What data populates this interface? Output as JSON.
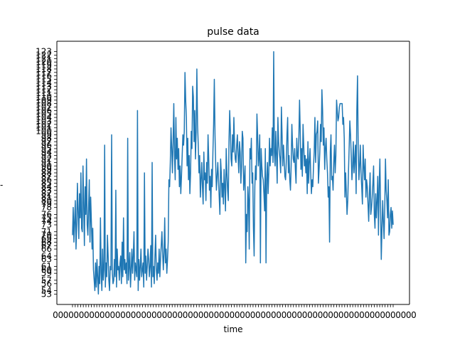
{
  "chart_data": {
    "type": "line",
    "title": "pulse data",
    "xlabel": "time",
    "ylabel": "-",
    "y_ticks": [
      53,
      54,
      56,
      57,
      59,
      60,
      61,
      63,
      64,
      66,
      67,
      68,
      69,
      70,
      71,
      73,
      74,
      75,
      76,
      78,
      79,
      80,
      81,
      82,
      83,
      84,
      85,
      86,
      87,
      88,
      89,
      90,
      91,
      92,
      93,
      94,
      95,
      96,
      97,
      98,
      99,
      100,
      101,
      102,
      103,
      104,
      105,
      106,
      107,
      108,
      109,
      110,
      111,
      112,
      113,
      114,
      115,
      116,
      117,
      118,
      119,
      120,
      121,
      122,
      123
    ],
    "ylim": [
      50,
      126
    ],
    "x_tick_label": "0",
    "grid": false,
    "series": [
      {
        "color": "#1f77b4",
        "values": [
          70,
          78,
          68,
          74,
          80,
          66,
          73,
          85,
          77,
          69,
          82,
          75,
          88,
          72,
          71,
          90,
          79,
          67,
          84,
          76,
          92,
          73,
          70,
          78,
          86,
          68,
          81,
          74,
          66,
          72,
          60,
          57,
          54,
          62,
          55,
          63,
          58,
          53,
          61,
          56,
          75,
          59,
          54,
          66,
          57,
          60,
          96,
          55,
          62,
          58,
          70,
          64,
          57,
          54,
          61,
          60,
          99,
          59,
          56,
          57,
          63,
          58,
          83,
          55,
          66,
          60,
          61,
          57,
          62,
          64,
          56,
          68,
          58,
          75,
          60,
          63,
          59,
          62,
          56,
          98,
          57,
          61,
          65,
          55,
          60,
          66,
          59,
          64,
          71,
          57,
          62,
          60,
          58,
          106,
          54,
          63,
          57,
          61,
          66,
          58,
          60,
          62,
          55,
          88,
          59,
          64,
          57,
          61,
          66,
          63,
          58,
          61,
          67,
          55,
          91,
          58,
          61,
          56,
          64,
          70,
          60,
          57,
          62,
          59,
          66,
          58,
          63,
          67,
          71,
          65,
          60,
          65,
          75,
          62,
          66,
          59,
          63,
          68,
          86,
          84,
          91,
          101,
          95,
          88,
          97,
          108,
          93,
          86,
          104,
          92,
          98,
          89,
          95,
          84,
          90,
          82,
          87,
          93,
          99,
          96,
          100,
          117,
          109,
          104,
          90,
          98,
          86,
          93,
          82,
          88,
          100,
          95,
          113,
          110,
          97,
          106,
          92,
          100,
          118,
          102,
          96,
          88,
          93,
          81,
          86,
          91,
          84,
          79,
          94,
          86,
          88,
          80,
          91,
          85,
          99,
          92,
          83,
          87,
          78,
          89,
          84,
          94,
          102,
          115,
          99,
          90,
          83,
          87,
          91,
          86,
          81,
          76,
          92,
          88,
          81,
          85,
          79,
          89,
          84,
          77,
          95,
          88,
          83,
          80,
          97,
          106,
          100,
          92,
          90,
          99,
          94,
          104,
          96,
          92,
          91,
          96,
          99,
          93,
          88,
          97,
          94,
          85,
          90,
          100,
          98,
          83,
          86,
          90,
          62,
          76,
          71,
          84,
          80,
          66,
          95,
          92,
          98,
          85,
          88,
          72,
          64,
          84,
          90,
          86,
          105,
          99,
          90,
          93,
          99,
          62,
          95,
          90,
          87,
          86,
          82,
          77,
          95,
          62,
          86,
          91,
          82,
          88,
          98,
          90,
          95,
          93,
          101,
          91,
          123,
          94,
          90,
          100,
          93,
          85,
          104,
          97,
          94,
          92,
          88,
          107,
          99,
          90,
          96,
          92,
          87,
          86,
          91,
          99,
          104,
          88,
          93,
          86,
          83,
          90,
          102,
          96,
          92,
          91,
          95,
          89,
          85,
          98,
          93,
          92,
          98,
          109,
          100,
          89,
          95,
          87,
          102,
          96,
          90,
          93,
          88,
          92,
          82,
          97,
          85,
          91,
          95,
          88,
          82,
          86,
          84,
          90,
          94,
          104,
          91,
          99,
          100,
          103,
          85,
          89,
          94,
          102,
          97,
          112,
          106,
          96,
          101,
          89,
          95,
          98,
          92,
          88,
          81,
          84,
          68,
          94,
          99,
          86,
          87,
          83,
          91,
          96,
          88,
          93,
          109,
          106,
          103,
          104,
          107,
          108,
          108,
          108,
          108,
          102,
          104,
          98,
          81,
          88,
          82,
          76,
          80,
          88,
          95,
          103,
          99,
          93,
          86,
          90,
          97,
          88,
          92,
          96,
          82,
          106,
          116,
          95,
          86,
          90,
          96,
          88,
          84,
          79,
          96,
          90,
          86,
          92,
          81,
          86,
          84,
          79,
          74,
          82,
          88,
          76,
          78,
          81,
          85,
          90,
          76,
          72,
          82,
          75,
          80,
          87,
          70,
          84,
          92,
          78,
          63,
          72,
          80,
          74,
          69,
          78,
          92,
          83,
          80,
          75,
          86,
          70,
          71,
          76,
          78,
          72,
          77,
          73
        ]
      }
    ]
  }
}
